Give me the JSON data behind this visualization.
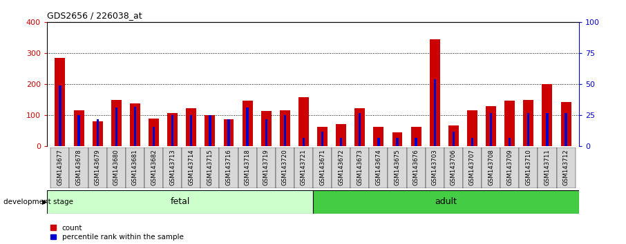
{
  "title": "GDS2656 / 226038_at",
  "samples": [
    "GSM143677",
    "GSM143678",
    "GSM143679",
    "GSM143680",
    "GSM143681",
    "GSM143682",
    "GSM143713",
    "GSM143714",
    "GSM143715",
    "GSM143716",
    "GSM143718",
    "GSM143719",
    "GSM143720",
    "GSM143721",
    "GSM143671",
    "GSM143672",
    "GSM143673",
    "GSM143674",
    "GSM143675",
    "GSM143676",
    "GSM143703",
    "GSM143706",
    "GSM143707",
    "GSM143708",
    "GSM143709",
    "GSM143710",
    "GSM143711",
    "GSM143712"
  ],
  "count_values": [
    285,
    115,
    80,
    150,
    138,
    90,
    108,
    122,
    100,
    88,
    148,
    113,
    117,
    158,
    62,
    72,
    122,
    62,
    45,
    62,
    345,
    68,
    115,
    130,
    148,
    150,
    200,
    143
  ],
  "percentile_values_right": [
    49,
    25,
    22,
    31,
    32,
    16,
    25,
    25,
    25,
    22,
    31,
    22,
    25,
    7,
    12,
    7,
    27,
    7,
    7,
    7,
    54,
    12,
    7,
    27,
    7,
    27,
    27,
    27
  ],
  "fetal_count": 14,
  "adult_count": 14,
  "fetal_label": "fetal",
  "adult_label": "adult",
  "stage_label": "development stage",
  "count_color": "#cc0000",
  "percentile_color": "#0000cc",
  "fetal_bg": "#ccffcc",
  "adult_bg": "#44cc44",
  "left_axis_color": "#cc0000",
  "right_axis_color": "#0000cc",
  "ylim_left": [
    0,
    400
  ],
  "ylim_right": [
    0,
    100
  ],
  "yticks_left": [
    0,
    100,
    200,
    300,
    400
  ],
  "yticks_right": [
    0,
    25,
    50,
    75,
    100
  ],
  "bar_width": 0.55,
  "bg_color": "#ffffff",
  "tick_label_bg": "#d8d8d8"
}
